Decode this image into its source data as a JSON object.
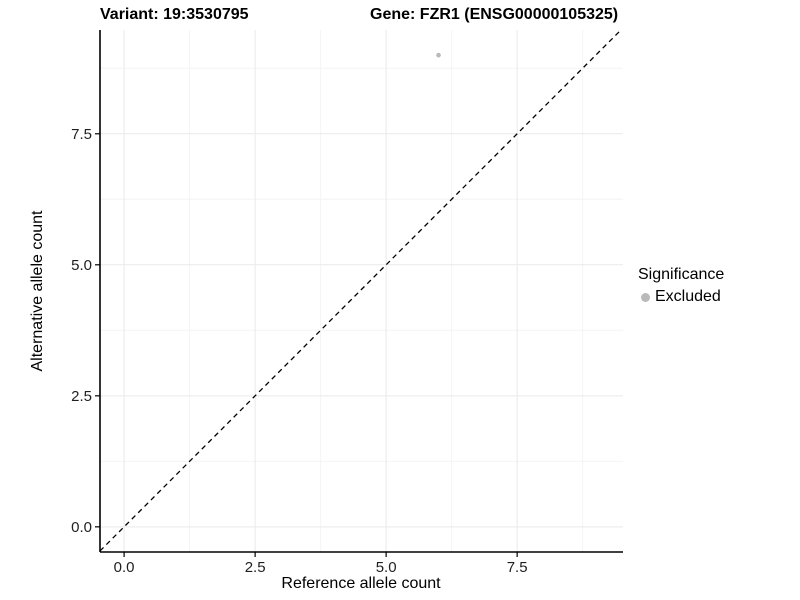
{
  "title": {
    "variant": "Variant: 19:3530795",
    "gene": "Gene: FZR1 (ENSG00000105325)"
  },
  "axes": {
    "x_label": "Reference allele count",
    "y_label": "Alternative allele count"
  },
  "legend": {
    "title": "Significance",
    "items": [
      {
        "label": "Excluded",
        "color": "#b9b9b9",
        "marker": "circle"
      }
    ]
  },
  "chart_data": {
    "type": "scatter",
    "title": "Variant: 19:3530795          Gene: FZR1 (ENSG00000105325)",
    "xlabel": "Reference allele count",
    "ylabel": "Alternative allele count",
    "xlim": [
      -0.46,
      9.52
    ],
    "ylim": [
      -0.48,
      9.48
    ],
    "x_tick_values": [
      0,
      2.5,
      5,
      7.5
    ],
    "y_tick_values": [
      0,
      2.5,
      5,
      7.5
    ],
    "x_tick_labels": [
      "0.0",
      "2.5",
      "5.0",
      "7.5"
    ],
    "y_tick_labels": [
      "0.0",
      "2.5",
      "5.0",
      "7.5"
    ],
    "x_minor_gridlines": [
      1.25,
      3.75,
      6.25,
      8.75
    ],
    "y_minor_gridlines": [
      1.25,
      3.75,
      6.25,
      8.75
    ],
    "grid": "major and minor gridlines, very light gray, white background",
    "legend_position": "right",
    "legend_title": "Significance",
    "series": [
      {
        "name": "Excluded",
        "color": "#b9b9b9",
        "points": [
          {
            "x": 6,
            "y": 9
          }
        ]
      }
    ],
    "reference_line": {
      "kind": "identity y=x",
      "style": "dashed",
      "color": "#000000"
    }
  },
  "colors": {
    "background": "#ffffff",
    "axis": "#000000",
    "grid_major": "#e9e9e9",
    "grid_minor": "#f4f4f4",
    "tick_label": "#1f1f1f",
    "point": "#b9b9b9"
  }
}
